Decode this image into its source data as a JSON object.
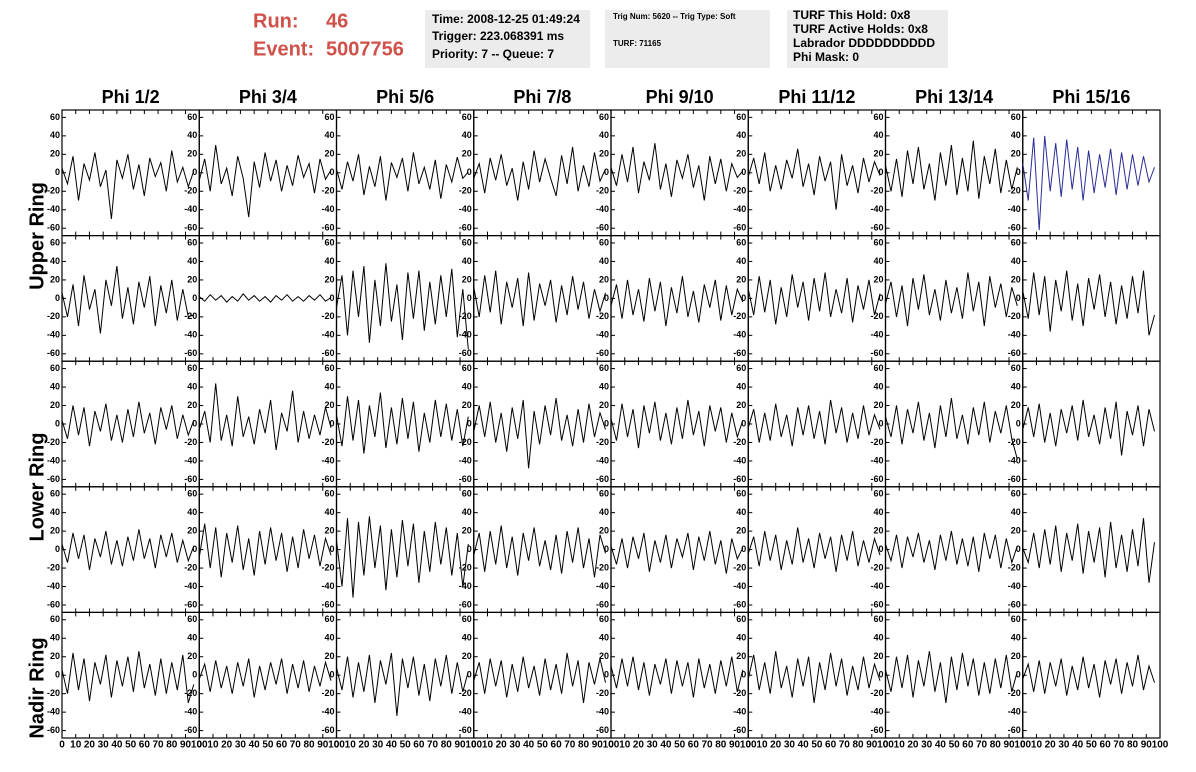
{
  "header": {
    "run_label": "Run:",
    "run": "46",
    "event_label": "Event:",
    "event": "5007756",
    "time": "Time: 2008-12-25 01:49:24",
    "trigger": "Trigger: 223.068391 ms",
    "priority": "Priority: 7 -- Queue: 7",
    "trig_num": "Trig Num: 5620 -- Trig Type: Soft",
    "turf": "TURF: 71165",
    "turf_hold": "TURF This Hold: 0x8",
    "turf_active": "TURF Active Holds: 0x8",
    "labrador": "Labrador DDDDDDDDDD",
    "phi_mask": "Phi Mask: 0"
  },
  "chart_data": {
    "type": "line",
    "columns": [
      "Phi 1/2",
      "Phi 3/4",
      "Phi 5/6",
      "Phi 7/8",
      "Phi 9/10",
      "Phi 11/12",
      "Phi 13/14",
      "Phi 15/16"
    ],
    "row_labels": [
      "Upper Ring",
      "Lower Ring",
      "Nadir Ring"
    ],
    "x": [
      0,
      4,
      8,
      12,
      16,
      20,
      24,
      28,
      32,
      36,
      40,
      44,
      48,
      52,
      56,
      60,
      64,
      68,
      72,
      76,
      80,
      84,
      88,
      92,
      96
    ],
    "xlim": [
      0,
      100
    ],
    "xticks": [
      0,
      10,
      20,
      30,
      40,
      50,
      60,
      70,
      80,
      90,
      100
    ],
    "ylim": [
      -68,
      68
    ],
    "yticks": [
      -60,
      -40,
      -20,
      0,
      20,
      40,
      60
    ],
    "panels": [
      {
        "color": "#000000",
        "values": [
          5,
          -12,
          18,
          -30,
          10,
          -8,
          22,
          -15,
          3,
          -50,
          14,
          -6,
          20,
          -18,
          9,
          -25,
          16,
          -4,
          11,
          -20,
          24,
          -10,
          6,
          -15,
          2
        ]
      },
      {
        "color": "#000000",
        "values": [
          -8,
          15,
          -20,
          30,
          -12,
          5,
          -25,
          18,
          -6,
          -48,
          12,
          -16,
          22,
          -9,
          14,
          -20,
          8,
          -14,
          19,
          -5,
          10,
          -22,
          15,
          -7,
          3
        ]
      },
      {
        "color": "#000000",
        "values": [
          4,
          -18,
          12,
          -9,
          20,
          -24,
          7,
          -15,
          18,
          -30,
          11,
          -5,
          16,
          -20,
          22,
          -12,
          6,
          -18,
          14,
          -28,
          9,
          -10,
          17,
          -6,
          1
        ]
      },
      {
        "color": "#000000",
        "values": [
          -6,
          10,
          -22,
          16,
          -8,
          20,
          -14,
          5,
          -30,
          12,
          -18,
          24,
          -10,
          15,
          -6,
          -25,
          19,
          -12,
          28,
          -20,
          8,
          -15,
          22,
          -9,
          4
        ]
      },
      {
        "color": "#000000",
        "values": [
          6,
          -14,
          20,
          -10,
          28,
          -22,
          12,
          -8,
          32,
          -18,
          10,
          -26,
          14,
          -6,
          20,
          -16,
          8,
          -30,
          18,
          -12,
          15,
          -20,
          10,
          -5,
          2
        ]
      },
      {
        "color": "#000000",
        "values": [
          -4,
          16,
          -12,
          22,
          -20,
          8,
          -18,
          14,
          -6,
          26,
          -15,
          10,
          -24,
          18,
          -9,
          12,
          -40,
          20,
          -14,
          8,
          -22,
          16,
          -10,
          12,
          -3
        ]
      },
      {
        "color": "#000000",
        "values": [
          8,
          -20,
          15,
          -26,
          24,
          -12,
          28,
          -18,
          10,
          -30,
          22,
          -14,
          30,
          -24,
          16,
          -20,
          35,
          -28,
          18,
          -12,
          26,
          -22,
          14,
          -18,
          6
        ]
      },
      {
        "color": "#2b2b96",
        "values": [
          10,
          -30,
          38,
          -62,
          40,
          -20,
          32,
          -26,
          36,
          -18,
          28,
          -30,
          24,
          -22,
          20,
          -16,
          26,
          -24,
          22,
          -18,
          20,
          -14,
          18,
          -10,
          6
        ]
      },
      {
        "color": "#000000",
        "values": [
          6,
          -20,
          15,
          -30,
          25,
          -12,
          10,
          -38,
          20,
          -8,
          35,
          -22,
          12,
          -28,
          18,
          -10,
          24,
          -30,
          14,
          -16,
          20,
          -24,
          10,
          -20,
          -18
        ]
      },
      {
        "color": "#000000",
        "values": [
          2,
          -3,
          4,
          -2,
          3,
          -4,
          2,
          -3,
          5,
          -2,
          3,
          -3,
          2,
          -4,
          3,
          -2,
          4,
          -3,
          2,
          -3,
          3,
          -2,
          4,
          -3,
          1
        ]
      },
      {
        "color": "#000000",
        "values": [
          -10,
          25,
          -40,
          30,
          -20,
          35,
          -48,
          20,
          -30,
          38,
          -25,
          15,
          -45,
          28,
          -22,
          30,
          -35,
          18,
          -28,
          25,
          -20,
          32,
          -42,
          10,
          -55
        ]
      },
      {
        "color": "#000000",
        "values": [
          12,
          -20,
          25,
          -15,
          30,
          -28,
          18,
          -10,
          22,
          -30,
          28,
          -24,
          16,
          -8,
          20,
          -26,
          14,
          -18,
          24,
          -12,
          18,
          -22,
          10,
          -14,
          6
        ]
      },
      {
        "color": "#000000",
        "values": [
          -8,
          15,
          -22,
          20,
          -18,
          10,
          -25,
          22,
          -14,
          18,
          -30,
          12,
          -16,
          24,
          -20,
          8,
          -26,
          15,
          -10,
          20,
          -24,
          14,
          -18,
          10,
          -4
        ]
      },
      {
        "color": "#000000",
        "values": [
          10,
          -18,
          24,
          -15,
          20,
          -28,
          12,
          -20,
          26,
          -10,
          18,
          -24,
          22,
          -14,
          28,
          -20,
          10,
          -16,
          22,
          -26,
          14,
          -12,
          20,
          -18,
          5
        ]
      },
      {
        "color": "#000000",
        "values": [
          -6,
          18,
          -20,
          14,
          -30,
          22,
          -12,
          26,
          -18,
          10,
          -24,
          20,
          -16,
          12,
          -22,
          28,
          -14,
          18,
          -30,
          24,
          -10,
          16,
          -20,
          12,
          -8
        ]
      },
      {
        "color": "#000000",
        "values": [
          8,
          -22,
          28,
          -18,
          24,
          -36,
          20,
          -14,
          30,
          -24,
          16,
          -30,
          22,
          -12,
          26,
          -20,
          18,
          -28,
          14,
          -22,
          24,
          -16,
          30,
          -40,
          -18
        ]
      },
      {
        "color": "#000000",
        "values": [
          4,
          -16,
          20,
          -12,
          18,
          -24,
          14,
          -8,
          22,
          -18,
          10,
          -20,
          16,
          -14,
          24,
          -10,
          12,
          -22,
          18,
          -6,
          20,
          -16,
          10,
          -12,
          4
        ]
      },
      {
        "color": "#000000",
        "values": [
          -6,
          14,
          -20,
          44,
          -18,
          10,
          -24,
          30,
          -14,
          8,
          -22,
          16,
          -10,
          26,
          -28,
          12,
          -8,
          36,
          -20,
          14,
          -16,
          10,
          -12,
          18,
          -4
        ]
      },
      {
        "color": "#000000",
        "values": [
          10,
          -24,
          30,
          -18,
          26,
          -32,
          20,
          -14,
          34,
          -26,
          18,
          -22,
          28,
          -16,
          24,
          -30,
          12,
          -20,
          26,
          -14,
          22,
          -18,
          16,
          -24,
          8
        ]
      },
      {
        "color": "#000000",
        "values": [
          -8,
          20,
          -14,
          24,
          -20,
          12,
          -30,
          18,
          -16,
          26,
          -48,
          14,
          -22,
          20,
          -12,
          28,
          -18,
          10,
          -24,
          16,
          -20,
          22,
          -14,
          12,
          -6
        ]
      },
      {
        "color": "#000000",
        "values": [
          6,
          -18,
          22,
          -14,
          16,
          -26,
          20,
          -10,
          24,
          -18,
          12,
          -22,
          18,
          -16,
          26,
          -12,
          14,
          -24,
          20,
          -8,
          18,
          -20,
          12,
          -14,
          4
        ]
      },
      {
        "color": "#000000",
        "values": [
          -4,
          16,
          -20,
          12,
          -18,
          22,
          -14,
          10,
          -24,
          18,
          -12,
          20,
          -16,
          14,
          -22,
          26,
          -10,
          18,
          -20,
          12,
          -16,
          20,
          -12,
          10,
          -6
        ]
      },
      {
        "color": "#000000",
        "values": [
          8,
          -14,
          20,
          -22,
          16,
          -10,
          24,
          -18,
          12,
          -26,
          20,
          -14,
          28,
          -16,
          10,
          -22,
          18,
          -12,
          24,
          -20,
          14,
          -10,
          20,
          -16,
          -38
        ]
      },
      {
        "color": "#000000",
        "values": [
          -6,
          18,
          -14,
          22,
          -20,
          12,
          -24,
          16,
          -10,
          20,
          -18,
          26,
          -14,
          10,
          -22,
          18,
          -16,
          24,
          -34,
          14,
          -12,
          20,
          -24,
          16,
          -8
        ]
      },
      {
        "color": "#000000",
        "values": [
          6,
          -14,
          18,
          -10,
          16,
          -22,
          12,
          -8,
          20,
          -16,
          10,
          -18,
          14,
          -12,
          22,
          -10,
          12,
          -20,
          16,
          -8,
          18,
          -14,
          10,
          -12,
          4
        ]
      },
      {
        "color": "#000000",
        "values": [
          -8,
          28,
          -20,
          24,
          -30,
          18,
          -14,
          26,
          -22,
          12,
          -28,
          20,
          -16,
          24,
          -12,
          18,
          -24,
          14,
          -20,
          22,
          -10,
          16,
          -18,
          12,
          -6
        ]
      },
      {
        "color": "#000000",
        "values": [
          10,
          -40,
          34,
          -52,
          30,
          -28,
          36,
          -20,
          26,
          -44,
          22,
          -30,
          32,
          -18,
          28,
          -36,
          20,
          -24,
          30,
          -16,
          24,
          -28,
          18,
          -40,
          6
        ]
      },
      {
        "color": "#000000",
        "values": [
          -6,
          18,
          -24,
          20,
          -16,
          26,
          -20,
          14,
          -28,
          18,
          -12,
          24,
          -18,
          10,
          -22,
          16,
          -26,
          20,
          -14,
          24,
          -20,
          12,
          -30,
          16,
          -4
        ]
      },
      {
        "color": "#000000",
        "values": [
          4,
          -16,
          12,
          -20,
          14,
          -10,
          18,
          -24,
          10,
          -14,
          16,
          -20,
          12,
          -8,
          18,
          -22,
          14,
          -12,
          20,
          -16,
          10,
          -26,
          12,
          -10,
          2
        ]
      },
      {
        "color": "#000000",
        "values": [
          -4,
          14,
          -18,
          20,
          -12,
          16,
          -22,
          10,
          -16,
          24,
          -14,
          12,
          -20,
          18,
          -10,
          14,
          -24,
          16,
          -12,
          20,
          -18,
          10,
          -14,
          12,
          -6
        ]
      },
      {
        "color": "#000000",
        "values": [
          6,
          -12,
          16,
          -20,
          14,
          -8,
          18,
          -14,
          10,
          -22,
          16,
          -12,
          20,
          -16,
          12,
          -18,
          14,
          -24,
          18,
          -10,
          16,
          -20,
          12,
          -14,
          4
        ]
      },
      {
        "color": "#000000",
        "values": [
          2,
          -14,
          18,
          -20,
          22,
          -16,
          26,
          -24,
          18,
          -12,
          28,
          -26,
          20,
          -14,
          24,
          -30,
          30,
          -20,
          16,
          -24,
          22,
          -18,
          34,
          -36,
          8
        ]
      },
      {
        "color": "#000000",
        "values": [
          6,
          -20,
          24,
          -16,
          18,
          -28,
          14,
          -10,
          22,
          -24,
          16,
          -12,
          20,
          -18,
          26,
          -14,
          12,
          -22,
          18,
          -20,
          14,
          -16,
          22,
          -30,
          -10
        ]
      },
      {
        "color": "#000000",
        "values": [
          -4,
          12,
          -18,
          16,
          -14,
          10,
          -20,
          14,
          -12,
          18,
          -24,
          10,
          -16,
          14,
          -10,
          18,
          -20,
          12,
          -14,
          16,
          -18,
          10,
          -12,
          14,
          -6
        ]
      },
      {
        "color": "#000000",
        "values": [
          8,
          -16,
          20,
          -24,
          14,
          -18,
          22,
          -30,
          16,
          -10,
          24,
          -44,
          18,
          -14,
          20,
          -22,
          12,
          -28,
          18,
          -12,
          22,
          -20,
          14,
          -18,
          4
        ]
      },
      {
        "color": "#000000",
        "values": [
          -6,
          14,
          -20,
          18,
          -12,
          16,
          -24,
          12,
          -18,
          20,
          -14,
          10,
          -22,
          18,
          -16,
          12,
          -20,
          24,
          -12,
          16,
          -30,
          14,
          -10,
          18,
          -8
        ]
      },
      {
        "color": "#000000",
        "values": [
          10,
          -14,
          18,
          -12,
          20,
          -16,
          14,
          -22,
          12,
          -10,
          18,
          -20,
          16,
          -12,
          14,
          -24,
          18,
          -14,
          12,
          -20,
          16,
          -12,
          20,
          -18,
          6
        ]
      },
      {
        "color": "#000000",
        "values": [
          -4,
          22,
          -16,
          14,
          -20,
          26,
          -14,
          10,
          -24,
          18,
          -12,
          20,
          -30,
          14,
          -16,
          24,
          -12,
          18,
          -22,
          10,
          -16,
          20,
          -14,
          12,
          -6
        ]
      },
      {
        "color": "#000000",
        "values": [
          6,
          -18,
          20,
          -14,
          22,
          -24,
          16,
          -12,
          26,
          -18,
          14,
          -30,
          20,
          -16,
          24,
          -12,
          18,
          -22,
          14,
          -20,
          18,
          -14,
          22,
          -18,
          4
        ]
      },
      {
        "color": "#000000",
        "values": [
          -4,
          12,
          -18,
          16,
          -20,
          14,
          -12,
          18,
          -22,
          10,
          -16,
          20,
          -14,
          12,
          -24,
          16,
          -10,
          18,
          -20,
          14,
          -12,
          22,
          -16,
          10,
          -8
        ]
      }
    ]
  }
}
